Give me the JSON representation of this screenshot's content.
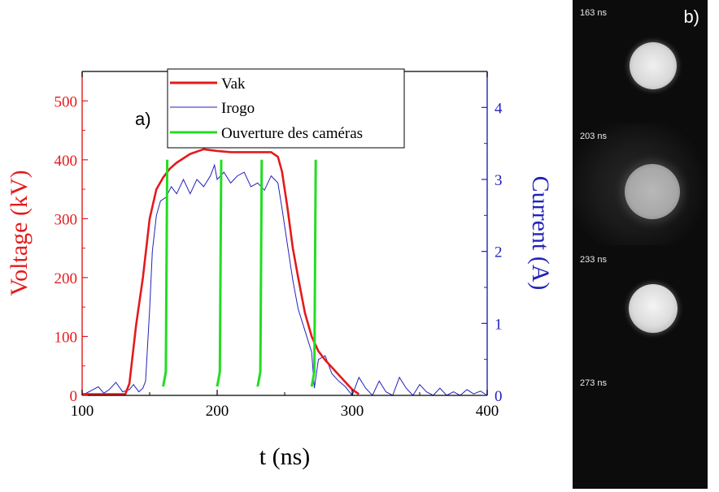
{
  "chart_data": {
    "type": "line",
    "panel_label": "a)",
    "xlabel": "t (ns)",
    "ylabel_left": "Voltage (kV)",
    "ylabel_right": "Current (A)",
    "xlim": [
      100,
      400
    ],
    "ylim_left": [
      0,
      550
    ],
    "ylim_right": [
      0,
      4.5
    ],
    "x_ticks": [
      100,
      200,
      300,
      400
    ],
    "y_ticks_left": [
      0,
      100,
      200,
      300,
      400,
      500
    ],
    "y_ticks_right": [
      0,
      1,
      2,
      3,
      4
    ],
    "legend_position": "top",
    "series": [
      {
        "name": "Vak",
        "axis": "left",
        "color": "#e41a1c",
        "x": [
          100,
          132,
          135,
          140,
          145,
          148,
          150,
          155,
          160,
          165,
          170,
          180,
          190,
          200,
          210,
          220,
          230,
          240,
          245,
          248,
          252,
          256,
          260,
          265,
          270,
          275,
          280,
          290,
          300,
          305
        ],
        "y": [
          2,
          2,
          20,
          120,
          200,
          260,
          300,
          350,
          370,
          385,
          395,
          410,
          418,
          415,
          413,
          413,
          413,
          413,
          405,
          380,
          320,
          250,
          200,
          140,
          100,
          75,
          60,
          35,
          10,
          2
        ]
      },
      {
        "name": "Irogo",
        "axis": "right",
        "color": "#2222bb",
        "x": [
          100,
          108,
          112,
          116,
          120,
          125,
          130,
          135,
          138,
          142,
          145,
          147,
          150,
          152,
          155,
          158,
          162,
          166,
          170,
          175,
          180,
          185,
          190,
          195,
          198,
          200,
          205,
          210,
          215,
          220,
          225,
          230,
          235,
          240,
          245,
          248,
          252,
          256,
          260,
          265,
          270,
          272,
          275,
          280,
          285,
          290,
          295,
          300,
          305,
          310,
          315,
          320,
          325,
          330,
          335,
          340,
          345,
          350,
          355,
          360,
          365,
          370,
          375,
          380,
          385,
          390,
          395,
          400
        ],
        "y": [
          0,
          0.08,
          0.12,
          0.03,
          0.08,
          0.18,
          0.05,
          0.08,
          0.15,
          0.05,
          0.1,
          0.2,
          1.2,
          2.0,
          2.5,
          2.7,
          2.75,
          2.9,
          2.8,
          3.0,
          2.8,
          3.0,
          2.9,
          3.05,
          3.2,
          3.0,
          3.1,
          2.95,
          3.05,
          3.1,
          2.9,
          2.95,
          2.85,
          3.05,
          2.95,
          2.6,
          2.1,
          1.6,
          1.2,
          0.9,
          0.6,
          0.1,
          0.5,
          0.55,
          0.3,
          0.2,
          0.12,
          0.0,
          0.25,
          0.1,
          0.0,
          0.2,
          0.05,
          0.0,
          0.25,
          0.1,
          0.0,
          0.15,
          0.05,
          0.0,
          0.1,
          0.0,
          0.05,
          0.0,
          0.08,
          0.02,
          0.06,
          0.0
        ]
      },
      {
        "name": "Ouverture des caméras",
        "axis": "left",
        "color": "#22dd22",
        "segments": [
          {
            "x": [
              160,
              162,
              163
            ],
            "y": [
              15,
              40,
              400
            ]
          },
          {
            "x": [
              200,
              202,
              203
            ],
            "y": [
              15,
              40,
              400
            ]
          },
          {
            "x": [
              230,
              232,
              233
            ],
            "y": [
              15,
              40,
              400
            ]
          },
          {
            "x": [
              270,
              272,
              273
            ],
            "y": [
              15,
              40,
              400
            ]
          }
        ]
      }
    ]
  },
  "camera_panel": {
    "panel_label": "b)",
    "frames": [
      {
        "label": "163 ns"
      },
      {
        "label": "203 ns"
      },
      {
        "label": "233 ns"
      },
      {
        "label": "273 ns"
      }
    ]
  }
}
